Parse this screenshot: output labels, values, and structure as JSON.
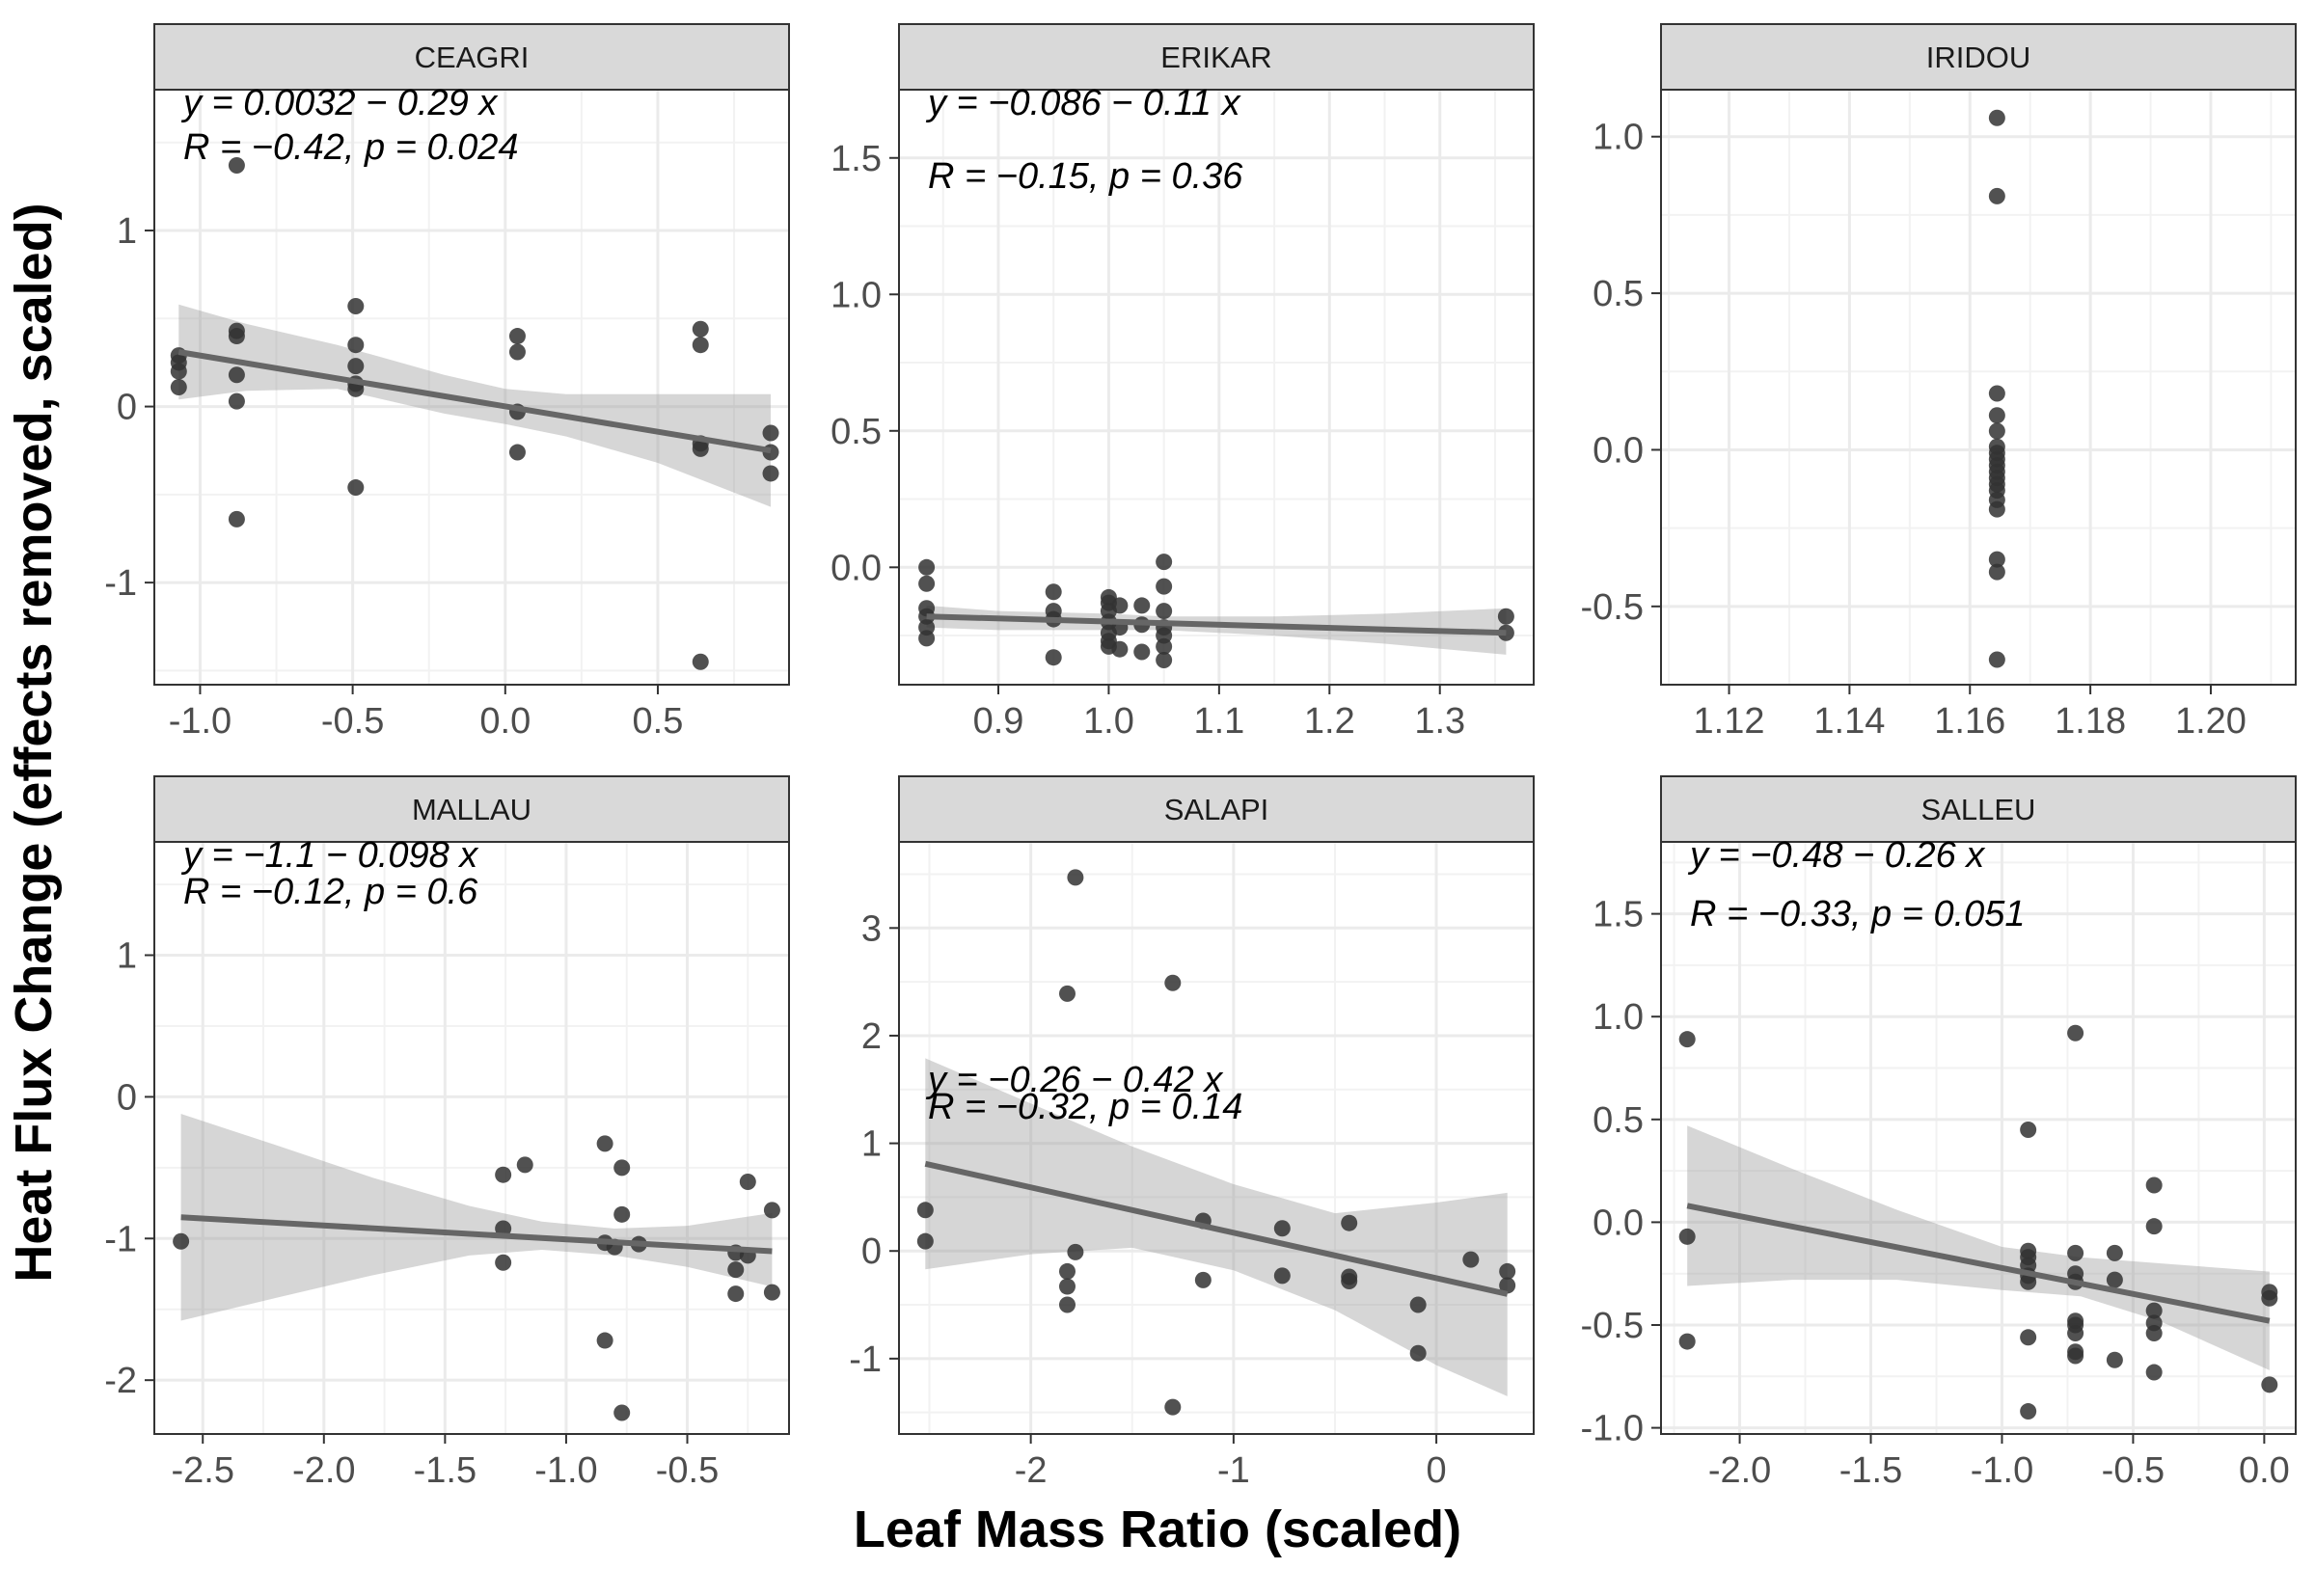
{
  "figure": {
    "ylabel": "Heat Flux Change (effects removed, scaled)",
    "xlabel": "Leaf Mass Ratio (scaled)"
  },
  "chart_data": [
    {
      "type": "scatter",
      "panel": "CEAGRI",
      "title": "CEAGRI",
      "x_ticks": [
        -1.0,
        -0.5,
        0.0,
        0.5
      ],
      "x_tick_labels": [
        "-1.0",
        "-0.5",
        "0.0",
        "0.5"
      ],
      "y_ticks": [
        -1,
        0,
        1
      ],
      "y_tick_labels": [
        "-1",
        "0",
        "1"
      ],
      "xlim": [
        -1.15,
        0.93
      ],
      "ylim": [
        -1.58,
        1.8
      ],
      "points": [
        [
          -1.07,
          0.29
        ],
        [
          -1.07,
          0.25
        ],
        [
          -1.07,
          0.2
        ],
        [
          -1.07,
          0.11
        ],
        [
          -0.88,
          1.37
        ],
        [
          -0.88,
          0.43
        ],
        [
          -0.88,
          0.4
        ],
        [
          -0.88,
          0.18
        ],
        [
          -0.88,
          0.03
        ],
        [
          -0.88,
          -0.64
        ],
        [
          -0.49,
          0.57
        ],
        [
          -0.49,
          0.35
        ],
        [
          -0.49,
          0.23
        ],
        [
          -0.49,
          0.13
        ],
        [
          -0.49,
          0.1
        ],
        [
          -0.49,
          -0.46
        ],
        [
          0.04,
          0.4
        ],
        [
          0.04,
          0.31
        ],
        [
          0.04,
          -0.03
        ],
        [
          0.04,
          -0.26
        ],
        [
          0.64,
          0.44
        ],
        [
          0.64,
          0.35
        ],
        [
          0.64,
          -0.21
        ],
        [
          0.64,
          -0.24
        ],
        [
          0.64,
          -1.45
        ],
        [
          0.87,
          -0.15
        ],
        [
          0.87,
          -0.26
        ],
        [
          0.87,
          -0.38
        ]
      ],
      "fit": {
        "x": [
          -1.07,
          0.87
        ],
        "y": [
          0.31,
          -0.25
        ]
      },
      "band": {
        "x": [
          -1.07,
          -0.85,
          -0.55,
          -0.2,
          0.0,
          0.2,
          0.5,
          0.87
        ],
        "upper": [
          0.58,
          0.47,
          0.35,
          0.18,
          0.1,
          0.07,
          0.07,
          0.07
        ],
        "lower": [
          0.04,
          0.09,
          0.1,
          -0.04,
          -0.1,
          -0.17,
          -0.32,
          -0.57
        ]
      },
      "equation": "y = 0.0032 − 0.29 x",
      "stats": "R = −0.42, p = 0.024"
    },
    {
      "type": "scatter",
      "panel": "ERIKAR",
      "title": "ERIKAR",
      "x_ticks": [
        0.9,
        1.0,
        1.1,
        1.2,
        1.3
      ],
      "x_tick_labels": [
        "0.9",
        "1.0",
        "1.1",
        "1.2",
        "1.3"
      ],
      "y_ticks": [
        0.0,
        0.5,
        1.0,
        1.5
      ],
      "y_tick_labels": [
        "0.0",
        "0.5",
        "1.0",
        "1.5"
      ],
      "xlim": [
        0.81,
        1.385
      ],
      "ylim": [
        -0.43,
        1.75
      ],
      "points": [
        [
          0.835,
          0.0
        ],
        [
          0.835,
          -0.06
        ],
        [
          0.835,
          -0.15
        ],
        [
          0.835,
          -0.18
        ],
        [
          0.835,
          -0.22
        ],
        [
          0.835,
          -0.26
        ],
        [
          0.95,
          -0.09
        ],
        [
          0.95,
          -0.16
        ],
        [
          0.95,
          -0.19
        ],
        [
          0.95,
          -0.33
        ],
        [
          1.0,
          -0.11
        ],
        [
          1.0,
          -0.13
        ],
        [
          1.0,
          -0.16
        ],
        [
          1.0,
          -0.2
        ],
        [
          1.0,
          -0.24
        ],
        [
          1.0,
          -0.27
        ],
        [
          1.0,
          -0.29
        ],
        [
          1.01,
          -0.14
        ],
        [
          1.01,
          -0.22
        ],
        [
          1.01,
          -0.3
        ],
        [
          1.03,
          -0.14
        ],
        [
          1.03,
          -0.21
        ],
        [
          1.03,
          -0.31
        ],
        [
          1.05,
          0.02
        ],
        [
          1.05,
          -0.07
        ],
        [
          1.05,
          -0.16
        ],
        [
          1.05,
          -0.22
        ],
        [
          1.05,
          -0.25
        ],
        [
          1.05,
          -0.29
        ],
        [
          1.05,
          -0.34
        ],
        [
          1.36,
          -0.18
        ],
        [
          1.36,
          -0.24
        ]
      ],
      "fit": {
        "x": [
          0.835,
          1.36
        ],
        "y": [
          -0.18,
          -0.24
        ]
      },
      "band": {
        "x": [
          0.835,
          0.9,
          1.0,
          1.05,
          1.15,
          1.25,
          1.36
        ],
        "upper": [
          -0.14,
          -0.16,
          -0.17,
          -0.18,
          -0.18,
          -0.17,
          -0.15
        ],
        "lower": [
          -0.22,
          -0.23,
          -0.23,
          -0.23,
          -0.25,
          -0.28,
          -0.32
        ]
      },
      "equation": "y = −0.086 − 0.11 x",
      "stats": "R = −0.15, p = 0.36"
    },
    {
      "type": "scatter",
      "panel": "IRIDOU",
      "title": "IRIDOU",
      "x_ticks": [
        1.12,
        1.14,
        1.16,
        1.18,
        1.2
      ],
      "x_tick_labels": [
        "1.12",
        "1.14",
        "1.16",
        "1.18",
        "1.20"
      ],
      "y_ticks": [
        -0.5,
        0.0,
        0.5,
        1.0
      ],
      "y_tick_labels": [
        "-0.5",
        "0.0",
        "0.5",
        "1.0"
      ],
      "xlim": [
        1.1087,
        1.2141
      ],
      "ylim": [
        -0.75,
        1.15
      ],
      "points": [
        [
          1.1645,
          1.06
        ],
        [
          1.1645,
          0.81
        ],
        [
          1.1645,
          0.18
        ],
        [
          1.1645,
          0.11
        ],
        [
          1.1645,
          0.06
        ],
        [
          1.1645,
          0.01
        ],
        [
          1.1645,
          -0.01
        ],
        [
          1.1645,
          -0.03
        ],
        [
          1.1645,
          -0.05
        ],
        [
          1.1645,
          -0.07
        ],
        [
          1.1645,
          -0.09
        ],
        [
          1.1645,
          -0.11
        ],
        [
          1.1645,
          -0.13
        ],
        [
          1.1645,
          -0.16
        ],
        [
          1.1645,
          -0.19
        ],
        [
          1.1645,
          -0.35
        ],
        [
          1.1645,
          -0.39
        ],
        [
          1.1645,
          -0.67
        ]
      ],
      "equation": "",
      "stats": ""
    },
    {
      "type": "scatter",
      "panel": "MALLAU",
      "title": "MALLAU",
      "x_ticks": [
        -2.5,
        -2.0,
        -1.5,
        -1.0,
        -0.5
      ],
      "x_tick_labels": [
        "-2.5",
        "-2.0",
        "-1.5",
        "-1.0",
        "-0.5"
      ],
      "y_ticks": [
        -2,
        -1,
        0,
        1
      ],
      "y_tick_labels": [
        "-2",
        "-1",
        "0",
        "1"
      ],
      "xlim": [
        -2.7,
        -0.08
      ],
      "ylim": [
        -2.38,
        1.8
      ],
      "points": [
        [
          -2.59,
          -1.02
        ],
        [
          -1.26,
          -0.55
        ],
        [
          -1.26,
          -0.93
        ],
        [
          -1.26,
          -1.17
        ],
        [
          -1.17,
          -0.48
        ],
        [
          -0.84,
          -0.33
        ],
        [
          -0.84,
          -1.03
        ],
        [
          -0.84,
          -1.72
        ],
        [
          -0.8,
          -1.06
        ],
        [
          -0.77,
          -0.5
        ],
        [
          -0.77,
          -0.83
        ],
        [
          -0.77,
          -2.23
        ],
        [
          -0.7,
          -1.04
        ],
        [
          -0.3,
          -1.1
        ],
        [
          -0.3,
          -1.22
        ],
        [
          -0.3,
          -1.39
        ],
        [
          -0.25,
          -0.6
        ],
        [
          -0.25,
          -1.12
        ],
        [
          -0.15,
          -0.8
        ],
        [
          -0.15,
          -1.38
        ]
      ],
      "fit": {
        "x": [
          -2.59,
          -0.15
        ],
        "y": [
          -0.85,
          -1.09
        ]
      },
      "band": {
        "x": [
          -2.59,
          -2.2,
          -1.8,
          -1.4,
          -1.1,
          -0.8,
          -0.5,
          -0.15
        ],
        "upper": [
          -0.12,
          -0.34,
          -0.57,
          -0.77,
          -0.88,
          -0.93,
          -0.91,
          -0.82
        ],
        "lower": [
          -1.58,
          -1.42,
          -1.26,
          -1.12,
          -1.08,
          -1.12,
          -1.2,
          -1.34
        ]
      },
      "equation": "y = −1.1 − 0.098 x",
      "stats": "R = −0.12, p = 0.6"
    },
    {
      "type": "scatter",
      "panel": "SALAPI",
      "title": "SALAPI",
      "x_ticks": [
        -2,
        -1,
        0
      ],
      "x_tick_labels": [
        "-2",
        "-1",
        "0"
      ],
      "y_ticks": [
        -1,
        0,
        1,
        2,
        3
      ],
      "y_tick_labels": [
        "-1",
        "0",
        "1",
        "2",
        "3"
      ],
      "xlim": [
        -2.65,
        0.48
      ],
      "ylim": [
        -1.7,
        3.8
      ],
      "points": [
        [
          -2.52,
          0.38
        ],
        [
          -2.52,
          0.09
        ],
        [
          -1.82,
          2.39
        ],
        [
          -1.82,
          -0.19
        ],
        [
          -1.82,
          -0.33
        ],
        [
          -1.82,
          -0.5
        ],
        [
          -1.78,
          3.47
        ],
        [
          -1.78,
          -0.01
        ],
        [
          -1.3,
          2.49
        ],
        [
          -1.3,
          -1.45
        ],
        [
          -1.15,
          0.28
        ],
        [
          -1.15,
          -0.27
        ],
        [
          -0.76,
          0.21
        ],
        [
          -0.76,
          -0.23
        ],
        [
          -0.43,
          0.26
        ],
        [
          -0.43,
          -0.24
        ],
        [
          -0.43,
          -0.28
        ],
        [
          -0.09,
          -0.5
        ],
        [
          -0.09,
          -0.95
        ],
        [
          0.17,
          -0.08
        ],
        [
          0.35,
          -0.19
        ],
        [
          0.35,
          -0.32
        ]
      ],
      "fit": {
        "x": [
          -2.52,
          0.35
        ],
        "y": [
          0.81,
          -0.4
        ]
      },
      "band": {
        "x": [
          -2.52,
          -2.0,
          -1.5,
          -1.0,
          -0.5,
          0.0,
          0.35
        ],
        "upper": [
          1.79,
          1.37,
          0.97,
          0.62,
          0.35,
          0.45,
          0.54
        ],
        "lower": [
          -0.17,
          -0.03,
          0.03,
          -0.18,
          -0.55,
          -1.06,
          -1.35
        ]
      },
      "equation": "y = −0.26 − 0.42 x",
      "stats": "R = −0.32, p = 0.14"
    },
    {
      "type": "scatter",
      "panel": "SALLEU",
      "title": "SALLEU",
      "x_ticks": [
        -2.0,
        -1.5,
        -1.0,
        -0.5,
        0.0
      ],
      "x_tick_labels": [
        "-2.0",
        "-1.5",
        "-1.0",
        "-0.5",
        "0.0"
      ],
      "y_ticks": [
        -1.0,
        -0.5,
        0.0,
        0.5,
        1.0,
        1.5
      ],
      "y_tick_labels": [
        "-1.0",
        "-0.5",
        "0.0",
        "0.5",
        "1.0",
        "1.5"
      ],
      "xlim": [
        -2.3,
        0.12
      ],
      "ylim": [
        -1.03,
        1.85
      ],
      "points": [
        [
          -2.2,
          0.89
        ],
        [
          -2.2,
          -0.07
        ],
        [
          -2.2,
          -0.58
        ],
        [
          -0.9,
          0.45
        ],
        [
          -0.9,
          -0.14
        ],
        [
          -0.9,
          -0.17
        ],
        [
          -0.9,
          -0.21
        ],
        [
          -0.9,
          -0.26
        ],
        [
          -0.9,
          -0.29
        ],
        [
          -0.9,
          -0.56
        ],
        [
          -0.9,
          -0.92
        ],
        [
          -0.72,
          0.92
        ],
        [
          -0.72,
          -0.15
        ],
        [
          -0.72,
          -0.25
        ],
        [
          -0.72,
          -0.29
        ],
        [
          -0.72,
          -0.48
        ],
        [
          -0.72,
          -0.5
        ],
        [
          -0.72,
          -0.54
        ],
        [
          -0.72,
          -0.63
        ],
        [
          -0.72,
          -0.65
        ],
        [
          -0.57,
          -0.15
        ],
        [
          -0.57,
          -0.28
        ],
        [
          -0.57,
          -0.67
        ],
        [
          -0.42,
          0.18
        ],
        [
          -0.42,
          -0.02
        ],
        [
          -0.42,
          -0.43
        ],
        [
          -0.42,
          -0.49
        ],
        [
          -0.42,
          -0.54
        ],
        [
          -0.42,
          -0.73
        ],
        [
          0.02,
          -0.34
        ],
        [
          0.02,
          -0.37
        ],
        [
          0.02,
          -0.79
        ]
      ],
      "fit": {
        "x": [
          -2.2,
          0.02
        ],
        "y": [
          0.08,
          -0.48
        ]
      },
      "band": {
        "x": [
          -2.2,
          -1.8,
          -1.4,
          -1.0,
          -0.7,
          -0.4,
          0.02
        ],
        "upper": [
          0.47,
          0.26,
          0.06,
          -0.12,
          -0.17,
          -0.2,
          -0.24
        ],
        "lower": [
          -0.31,
          -0.28,
          -0.28,
          -0.33,
          -0.36,
          -0.48,
          -0.72
        ]
      },
      "equation": "y = −0.48 − 0.26 x",
      "stats": "R = −0.33, p = 0.051"
    }
  ]
}
